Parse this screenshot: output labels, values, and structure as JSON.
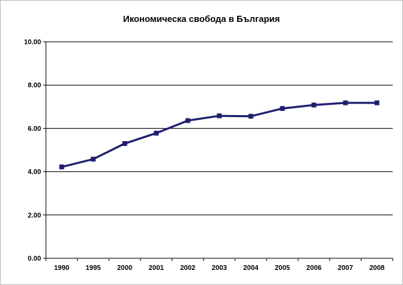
{
  "chart_data": {
    "type": "line",
    "title": "Икономическа свобода в България",
    "xlabel": "",
    "ylabel": "",
    "categories": [
      "1990",
      "1995",
      "2000",
      "2001",
      "2002",
      "2003",
      "2004",
      "2005",
      "2006",
      "2007",
      "2008"
    ],
    "series": [
      {
        "values": [
          4.22,
          4.58,
          5.3,
          5.78,
          6.36,
          6.58,
          6.56,
          6.92,
          7.08,
          7.18,
          7.18
        ],
        "color": "#1f1f6e",
        "marker": "square"
      }
    ],
    "ylim": [
      0,
      10
    ],
    "yticks": [
      "0.00",
      "2.00",
      "4.00",
      "6.00",
      "8.00",
      "10.00"
    ],
    "grid": "horizontal",
    "legend": "none"
  }
}
